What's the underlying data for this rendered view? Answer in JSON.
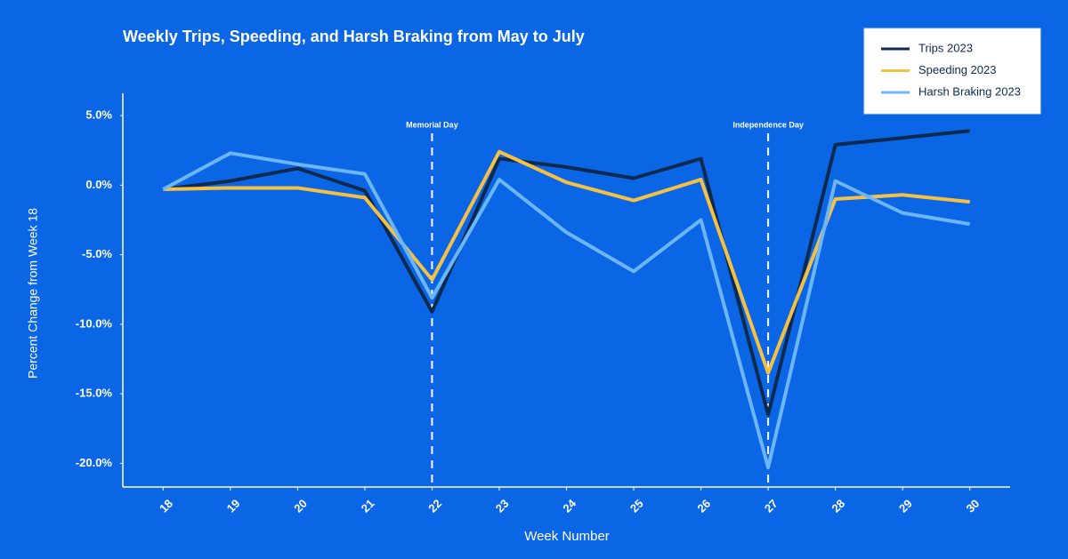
{
  "chart_data": {
    "type": "line",
    "title": "Weekly Trips, Speeding, and Harsh Braking from May to July",
    "x_label": "Week Number",
    "y_label": "Percent Change from Week 18",
    "x": [
      18,
      19,
      20,
      21,
      22,
      23,
      24,
      25,
      26,
      27,
      28,
      29,
      30
    ],
    "series": [
      {
        "name": "Trips 2023",
        "color": "#0c2a4f",
        "values": [
          -0.3,
          0.3,
          1.2,
          -0.4,
          -9.1,
          1.9,
          1.3,
          0.5,
          1.9,
          -16.5,
          2.9,
          3.4,
          3.9
        ]
      },
      {
        "name": "Speeding 2023",
        "color": "#f6c143",
        "values": [
          -0.3,
          -0.2,
          -0.2,
          -0.9,
          -6.8,
          2.4,
          0.2,
          -1.1,
          0.4,
          -13.5,
          -1.0,
          -0.7,
          -1.2
        ]
      },
      {
        "name": "Harsh Braking 2023",
        "color": "#6cb6f7",
        "values": [
          -0.3,
          2.3,
          1.5,
          0.8,
          -8.1,
          0.4,
          -3.4,
          -6.2,
          -2.5,
          -20.3,
          0.3,
          -2.0,
          -2.8
        ]
      }
    ],
    "annotations": [
      {
        "x": 22,
        "text": "Memorial Day"
      },
      {
        "x": 27,
        "text": "Independence Day"
      }
    ],
    "xlim": [
      17.4,
      30.6
    ],
    "xticks": [
      18,
      19,
      20,
      21,
      22,
      23,
      24,
      25,
      26,
      27,
      28,
      29,
      30
    ],
    "ylim": [
      -21.7,
      6.6
    ],
    "yticks": [
      {
        "value": 5,
        "label": "5.0%"
      },
      {
        "value": 0,
        "label": "0.0%"
      },
      {
        "value": -5,
        "label": "-5.0%"
      },
      {
        "value": -10,
        "label": "-10.0%"
      },
      {
        "value": -15,
        "label": "-15.0%"
      },
      {
        "value": -20,
        "label": "-20.0%"
      }
    ],
    "legend": "top-right",
    "grid": false
  }
}
